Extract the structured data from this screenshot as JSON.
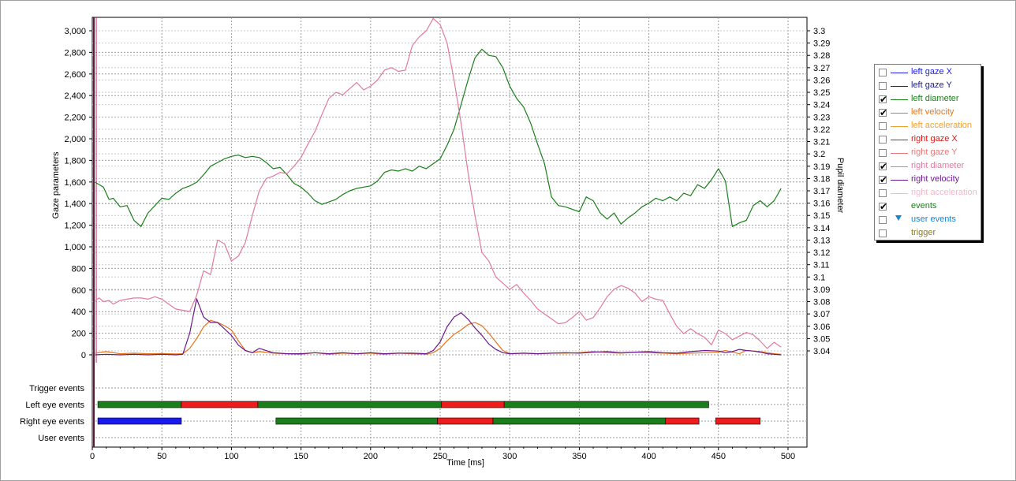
{
  "chart_data": {
    "type": "line",
    "xlabel": "Time [ms]",
    "ylabel_left": "Gaze parameters",
    "ylabel_right": "Pupil diameter",
    "xlim": [
      0,
      500
    ],
    "ylim_left": [
      -60,
      3060
    ],
    "ylim_right": [
      3.036,
      3.3105
    ],
    "x_ticks": [
      0,
      50,
      100,
      150,
      200,
      250,
      300,
      350,
      400,
      450,
      500
    ],
    "y_left_ticks": [
      0,
      200,
      400,
      600,
      800,
      1000,
      1200,
      1400,
      1600,
      1800,
      2000,
      2200,
      2400,
      2600,
      2800,
      3000
    ],
    "y_left_tick_labels": [
      "0",
      "200",
      "400",
      "600",
      "800",
      "1,000",
      "1,200",
      "1,400",
      "1,600",
      "1,800",
      "2,000",
      "2,200",
      "2,400",
      "2,600",
      "2,800",
      "3,000"
    ],
    "y_right_ticks": [
      3.04,
      3.05,
      3.06,
      3.07,
      3.08,
      3.09,
      3.1,
      3.11,
      3.12,
      3.13,
      3.14,
      3.15,
      3.16,
      3.17,
      3.18,
      3.19,
      3.2,
      3.21,
      3.22,
      3.23,
      3.24,
      3.25,
      3.26,
      3.27,
      3.28,
      3.29,
      3.3
    ],
    "y_right_tick_labels": [
      "3.04",
      "3.05",
      "3.06",
      "3.07",
      "3.08",
      "3.09",
      "3.1",
      "3.11",
      "3.12",
      "3.13",
      "3.14",
      "3.15",
      "3.16",
      "3.17",
      "3.18",
      "3.19",
      "3.2",
      "3.21",
      "3.22",
      "3.23",
      "3.24",
      "3.25",
      "3.26",
      "3.27",
      "3.28",
      "3.29",
      "3.3"
    ],
    "grid": true,
    "legend_position": "right",
    "series": [
      {
        "name": "left diameter",
        "axis": "right",
        "color": "#1a7f1a",
        "x": [
          2,
          8,
          12,
          15,
          20,
          25,
          30,
          35,
          40,
          45,
          50,
          55,
          60,
          65,
          70,
          75,
          80,
          85,
          90,
          95,
          100,
          105,
          110,
          115,
          120,
          125,
          130,
          135,
          140,
          145,
          150,
          155,
          160,
          165,
          170,
          175,
          180,
          185,
          190,
          195,
          200,
          205,
          210,
          215,
          220,
          225,
          230,
          235,
          240,
          245,
          250,
          255,
          260,
          265,
          270,
          275,
          280,
          285,
          290,
          295,
          300,
          305,
          310,
          315,
          320,
          325,
          330,
          335,
          340,
          345,
          350,
          355,
          360,
          365,
          370,
          375,
          380,
          385,
          390,
          395,
          400,
          405,
          410,
          415,
          420,
          425,
          430,
          435,
          440,
          445,
          450,
          455,
          460,
          465,
          470,
          475,
          480,
          485,
          490,
          495
        ],
        "y": [
          3.177,
          3.173,
          3.163,
          3.164,
          3.157,
          3.158,
          3.146,
          3.141,
          3.152,
          3.158,
          3.164,
          3.163,
          3.168,
          3.172,
          3.174,
          3.177,
          3.183,
          3.19,
          3.193,
          3.196,
          3.198,
          3.199,
          3.197,
          3.198,
          3.197,
          3.193,
          3.188,
          3.189,
          3.183,
          3.176,
          3.173,
          3.168,
          3.162,
          3.159,
          3.161,
          3.163,
          3.167,
          3.17,
          3.172,
          3.173,
          3.174,
          3.178,
          3.185,
          3.187,
          3.186,
          3.188,
          3.186,
          3.19,
          3.188,
          3.192,
          3.196,
          3.207,
          3.22,
          3.24,
          3.26,
          3.278,
          3.285,
          3.28,
          3.279,
          3.27,
          3.255,
          3.245,
          3.238,
          3.225,
          3.208,
          3.192,
          3.165,
          3.158,
          3.157,
          3.155,
          3.153,
          3.165,
          3.162,
          3.152,
          3.147,
          3.152,
          3.143,
          3.148,
          3.152,
          3.157,
          3.16,
          3.164,
          3.162,
          3.165,
          3.162,
          3.168,
          3.166,
          3.175,
          3.172,
          3.179,
          3.188,
          3.178,
          3.141,
          3.144,
          3.146,
          3.158,
          3.162,
          3.157,
          3.162,
          3.172
        ]
      },
      {
        "name": "right diameter",
        "axis": "right",
        "color": "#e07aa0",
        "x": [
          2,
          5,
          8,
          12,
          15,
          20,
          25,
          30,
          35,
          40,
          45,
          50,
          55,
          60,
          65,
          70,
          75,
          80,
          85,
          90,
          95,
          100,
          105,
          110,
          115,
          120,
          125,
          130,
          135,
          140,
          145,
          150,
          155,
          160,
          165,
          170,
          175,
          180,
          185,
          190,
          195,
          200,
          205,
          210,
          215,
          220,
          225,
          230,
          235,
          240,
          245,
          250,
          255,
          260,
          265,
          270,
          275,
          280,
          285,
          290,
          295,
          300,
          305,
          310,
          315,
          320,
          325,
          330,
          335,
          340,
          345,
          350,
          355,
          360,
          365,
          370,
          375,
          380,
          385,
          390,
          395,
          400,
          405,
          410,
          415,
          420,
          425,
          430,
          435,
          440,
          445,
          450,
          455,
          460,
          465,
          470,
          475,
          480,
          485,
          490,
          495
        ],
        "y": [
          3.081,
          3.083,
          3.08,
          3.081,
          3.078,
          3.081,
          3.082,
          3.083,
          3.083,
          3.082,
          3.084,
          3.082,
          3.078,
          3.074,
          3.073,
          3.072,
          3.085,
          3.105,
          3.102,
          3.13,
          3.127,
          3.113,
          3.117,
          3.128,
          3.15,
          3.17,
          3.18,
          3.182,
          3.185,
          3.184,
          3.19,
          3.197,
          3.208,
          3.218,
          3.232,
          3.245,
          3.25,
          3.248,
          3.253,
          3.258,
          3.252,
          3.255,
          3.26,
          3.268,
          3.27,
          3.267,
          3.268,
          3.288,
          3.295,
          3.3,
          3.31,
          3.305,
          3.29,
          3.26,
          3.225,
          3.185,
          3.15,
          3.12,
          3.113,
          3.1,
          3.095,
          3.09,
          3.094,
          3.087,
          3.081,
          3.074,
          3.07,
          3.066,
          3.062,
          3.063,
          3.067,
          3.072,
          3.065,
          3.067,
          3.075,
          3.084,
          3.09,
          3.093,
          3.091,
          3.087,
          3.08,
          3.084,
          3.082,
          3.081,
          3.07,
          3.06,
          3.054,
          3.058,
          3.054,
          3.051,
          3.045,
          3.057,
          3.054,
          3.049,
          3.052,
          3.055,
          3.053,
          3.048,
          3.042,
          3.047,
          3.043
        ]
      },
      {
        "name": "left velocity",
        "axis": "left",
        "color": "#e8731a",
        "x": [
          2,
          10,
          20,
          30,
          40,
          50,
          60,
          65,
          70,
          75,
          80,
          85,
          90,
          95,
          100,
          105,
          110,
          115,
          120,
          130,
          140,
          150,
          160,
          170,
          180,
          190,
          200,
          210,
          220,
          230,
          240,
          245,
          250,
          255,
          260,
          265,
          270,
          275,
          280,
          285,
          290,
          295,
          300,
          310,
          320,
          330,
          340,
          350,
          360,
          370,
          380,
          390,
          400,
          410,
          420,
          430,
          440,
          450,
          455,
          460,
          465,
          470,
          475,
          480,
          485,
          490,
          495
        ],
        "y": [
          15,
          30,
          10,
          15,
          10,
          12,
          8,
          10,
          60,
          150,
          260,
          320,
          300,
          270,
          230,
          130,
          40,
          20,
          30,
          15,
          10,
          5,
          20,
          5,
          15,
          10,
          15,
          5,
          15,
          10,
          5,
          20,
          60,
          130,
          190,
          230,
          280,
          300,
          270,
          200,
          120,
          40,
          10,
          15,
          10,
          15,
          15,
          20,
          30,
          20,
          15,
          25,
          20,
          15,
          10,
          15,
          20,
          25,
          40,
          25,
          10,
          40,
          35,
          30,
          20,
          10,
          5
        ]
      },
      {
        "name": "right velocity",
        "axis": "left",
        "color": "#6a1a8c",
        "x": [
          2,
          10,
          20,
          30,
          40,
          50,
          60,
          65,
          70,
          75,
          80,
          85,
          90,
          95,
          100,
          105,
          110,
          115,
          120,
          130,
          140,
          150,
          160,
          170,
          180,
          190,
          200,
          210,
          220,
          230,
          240,
          245,
          250,
          255,
          260,
          265,
          270,
          275,
          280,
          285,
          290,
          295,
          300,
          310,
          320,
          330,
          340,
          350,
          360,
          370,
          380,
          390,
          400,
          410,
          420,
          430,
          440,
          450,
          455,
          460,
          465,
          470,
          475,
          480,
          485,
          490,
          495
        ],
        "y": [
          0,
          5,
          0,
          5,
          0,
          5,
          0,
          5,
          200,
          520,
          350,
          300,
          300,
          240,
          180,
          90,
          40,
          20,
          60,
          20,
          10,
          10,
          20,
          10,
          20,
          10,
          20,
          10,
          15,
          15,
          10,
          40,
          120,
          260,
          350,
          390,
          330,
          250,
          180,
          100,
          50,
          20,
          10,
          15,
          10,
          15,
          20,
          15,
          25,
          30,
          20,
          25,
          30,
          20,
          15,
          30,
          40,
          35,
          20,
          30,
          50,
          40,
          35,
          25,
          10,
          5,
          0
        ]
      }
    ],
    "event_rows": [
      {
        "name": "Trigger events",
        "segments": []
      },
      {
        "name": "Left eye events",
        "segments": [
          {
            "start": 4,
            "end": 64,
            "type": "fixation",
            "color": "#1a7f1a"
          },
          {
            "start": 64,
            "end": 119,
            "type": "saccade",
            "color": "#ee1c1c"
          },
          {
            "start": 119,
            "end": 251,
            "type": "fixation",
            "color": "#1a7f1a"
          },
          {
            "start": 251,
            "end": 296,
            "type": "saccade",
            "color": "#ee1c1c"
          },
          {
            "start": 296,
            "end": 443,
            "type": "fixation",
            "color": "#1a7f1a"
          }
        ]
      },
      {
        "name": "Right eye events",
        "segments": [
          {
            "start": 4,
            "end": 64,
            "type": "blink",
            "color": "#1a1aee"
          },
          {
            "start": 132,
            "end": 248,
            "type": "fixation",
            "color": "#1a7f1a"
          },
          {
            "start": 248,
            "end": 288,
            "type": "saccade",
            "color": "#ee1c1c"
          },
          {
            "start": 288,
            "end": 412,
            "type": "fixation",
            "color": "#1a7f1a"
          },
          {
            "start": 412,
            "end": 436,
            "type": "saccade",
            "color": "#ee1c1c"
          },
          {
            "start": 448,
            "end": 480,
            "type": "saccade",
            "color": "#ee1c1c"
          }
        ]
      },
      {
        "name": "User events",
        "segments": []
      }
    ]
  },
  "legend": {
    "items": [
      {
        "label": "left gaze X",
        "checked": false,
        "color": "#1a1aee",
        "label_color": "#1a1aee",
        "marker": "line"
      },
      {
        "label": "left gaze Y",
        "checked": false,
        "color": "#1a1a8c",
        "label_color": "#1a1a8c",
        "marker": "line"
      },
      {
        "label": "left diameter",
        "checked": true,
        "color": "#1a7f1a",
        "label_color": "#1a7f1a",
        "marker": "line"
      },
      {
        "label": "left velocity",
        "checked": true,
        "color": "#e8731a",
        "label_color": "#e8731a",
        "marker": "line"
      },
      {
        "label": "left acceleration",
        "checked": false,
        "color": "#f0a030",
        "label_color": "#f0a030",
        "marker": "line"
      },
      {
        "label": "right gaze X",
        "checked": false,
        "color": "#d01a1a",
        "label_color": "#d01a1a",
        "marker": "line"
      },
      {
        "label": "right gaze Y",
        "checked": false,
        "color": "#e87878",
        "label_color": "#e87878",
        "marker": "line"
      },
      {
        "label": "right diameter",
        "checked": true,
        "color": "#e07aa0",
        "label_color": "#e07aa0",
        "marker": "line"
      },
      {
        "label": "right velocity",
        "checked": true,
        "color": "#6a1a8c",
        "label_color": "#6a1a8c",
        "marker": "line"
      },
      {
        "label": "right acceleration",
        "checked": false,
        "color": "#f4b8c8",
        "label_color": "#f4b8c8",
        "marker": "line"
      },
      {
        "label": "events",
        "checked": true,
        "color": "",
        "label_color": "#1a7f1a",
        "marker": "none"
      },
      {
        "label": "user events",
        "checked": false,
        "color": "#1a86c8",
        "label_color": "#1a86c8",
        "marker": "triangle"
      },
      {
        "label": "trigger",
        "checked": false,
        "color": "",
        "label_color": "#8c7a1a",
        "marker": "none"
      }
    ]
  }
}
